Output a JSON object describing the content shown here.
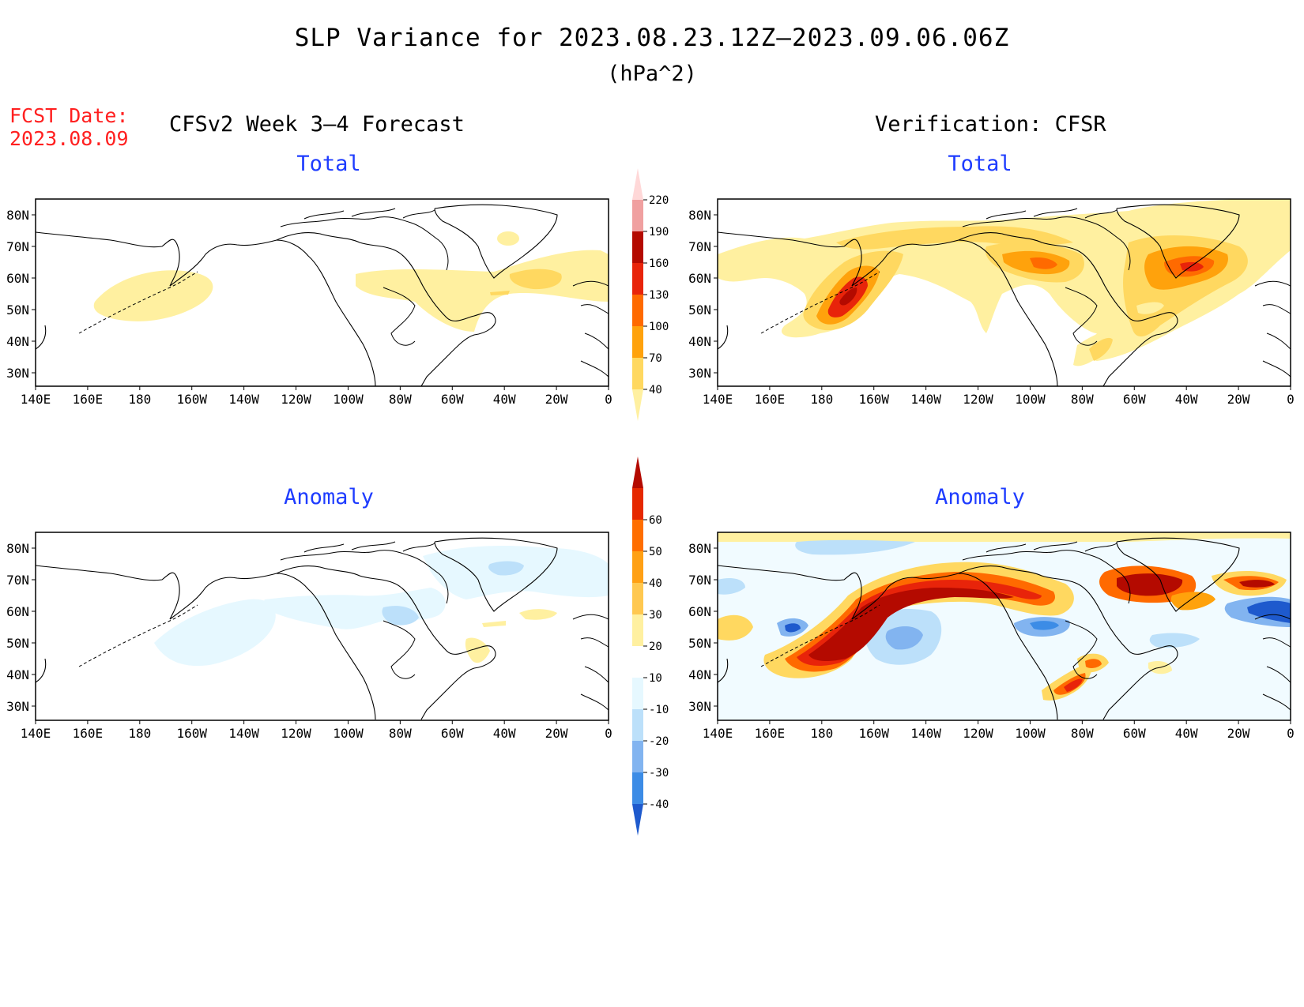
{
  "title": "SLP Variance for 2023.08.23.12Z–2023.09.06.06Z",
  "units": "(hPa^2)",
  "fcst_label": "FCST Date:",
  "fcst_date": "2023.08.09",
  "left_header": "CFSv2 Week 3–4 Forecast",
  "right_header": "Verification: CFSR",
  "panels": [
    {
      "title": "Total"
    },
    {
      "title": "Total"
    },
    {
      "title": "Anomaly"
    },
    {
      "title": "Anomaly"
    }
  ],
  "lon_labels": [
    "140E",
    "160E",
    "180",
    "160W",
    "140W",
    "120W",
    "100W",
    "80W",
    "60W",
    "40W",
    "20W",
    "0"
  ],
  "lat_labels": [
    "80N",
    "70N",
    "60N",
    "50N",
    "40N",
    "30N"
  ],
  "colorbar_total": {
    "levels": [
      "40",
      "70",
      "100",
      "130",
      "160",
      "190",
      "220"
    ],
    "colors": [
      "#fff0a0",
      "#ffd860",
      "#ffa20c",
      "#ff6a00",
      "#e8240a",
      "#b40a00",
      "#f0a0a0",
      "#ffd8d8"
    ]
  },
  "colorbar_anom": {
    "levels": [
      "-40",
      "-30",
      "-20",
      "-10",
      "10",
      "20",
      "30",
      "40",
      "50",
      "60"
    ],
    "colors": [
      "#1e5acd",
      "#3c8ce6",
      "#82b4f0",
      "#bce0fa",
      "#e6f8ff",
      "#ffffff",
      "#fff0a0",
      "#ffc850",
      "#ffa014",
      "#ff6e00",
      "#e62800",
      "#b40a00"
    ]
  }
}
